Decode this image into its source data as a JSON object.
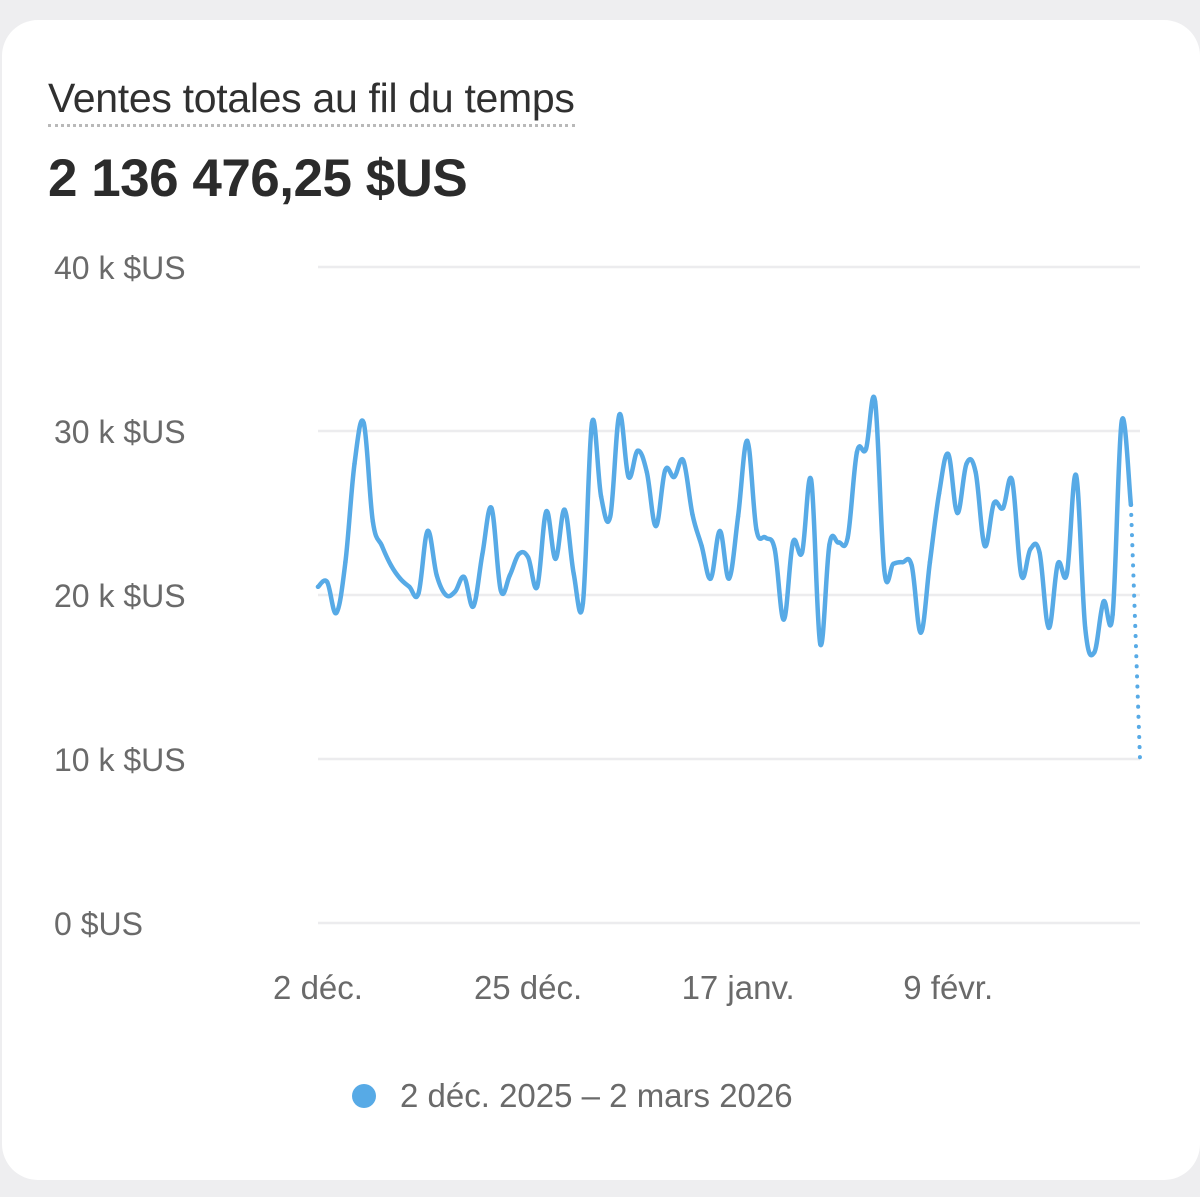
{
  "card": {
    "title": "Ventes totales au fil du temps",
    "total": "2 136 476,25 $US"
  },
  "legend": {
    "label": "2 déc. 2025 – 2 mars 2026"
  },
  "colors": {
    "series": "#57aae6",
    "grid": "#ececee",
    "axis_text": "#6a6a6a",
    "title_text": "#303030"
  },
  "chart_data": {
    "type": "line",
    "title": "Ventes totales au fil du temps",
    "xlabel": "",
    "ylabel": "",
    "ylim": [
      0,
      40000
    ],
    "grid": true,
    "legend_position": "bottom",
    "y_ticks": [
      {
        "value": 0,
        "label": "0 $US"
      },
      {
        "value": 10000,
        "label": "10 k $US"
      },
      {
        "value": 20000,
        "label": "20 k $US"
      },
      {
        "value": 30000,
        "label": "30 k $US"
      },
      {
        "value": 40000,
        "label": "40 k $US"
      }
    ],
    "x_ticks": [
      {
        "date": "2025-12-02",
        "label": "2 déc."
      },
      {
        "date": "2025-12-25",
        "label": "25 déc."
      },
      {
        "date": "2026-01-17",
        "label": "17 janv."
      },
      {
        "date": "2026-02-09",
        "label": "9 févr."
      }
    ],
    "series": [
      {
        "name": "2 déc. 2025 – 2 mars 2026",
        "color": "#57aae6",
        "x": [
          "2025-12-02",
          "2025-12-03",
          "2025-12-04",
          "2025-12-05",
          "2025-12-06",
          "2025-12-07",
          "2025-12-08",
          "2025-12-09",
          "2025-12-10",
          "2025-12-11",
          "2025-12-12",
          "2025-12-13",
          "2025-12-14",
          "2025-12-15",
          "2025-12-16",
          "2025-12-17",
          "2025-12-18",
          "2025-12-19",
          "2025-12-20",
          "2025-12-21",
          "2025-12-22",
          "2025-12-23",
          "2025-12-24",
          "2025-12-25",
          "2025-12-26",
          "2025-12-27",
          "2025-12-28",
          "2025-12-29",
          "2025-12-30",
          "2025-12-31",
          "2026-01-01",
          "2026-01-02",
          "2026-01-03",
          "2026-01-04",
          "2026-01-05",
          "2026-01-06",
          "2026-01-07",
          "2026-01-08",
          "2026-01-09",
          "2026-01-10",
          "2026-01-11",
          "2026-01-12",
          "2026-01-13",
          "2026-01-14",
          "2026-01-15",
          "2026-01-16",
          "2026-01-17",
          "2026-01-18",
          "2026-01-19",
          "2026-01-20",
          "2026-01-21",
          "2026-01-22",
          "2026-01-23",
          "2026-01-24",
          "2026-01-25",
          "2026-01-26",
          "2026-01-27",
          "2026-01-28",
          "2026-01-29",
          "2026-01-30",
          "2026-01-31",
          "2026-02-01",
          "2026-02-02",
          "2026-02-03",
          "2026-02-04",
          "2026-02-05",
          "2026-02-06",
          "2026-02-07",
          "2026-02-08",
          "2026-02-09",
          "2026-02-10",
          "2026-02-11",
          "2026-02-12",
          "2026-02-13",
          "2026-02-14",
          "2026-02-15",
          "2026-02-16",
          "2026-02-17",
          "2026-02-18",
          "2026-02-19",
          "2026-02-20",
          "2026-02-21",
          "2026-02-22",
          "2026-02-23",
          "2026-02-24",
          "2026-02-25",
          "2026-02-26",
          "2026-02-27",
          "2026-02-28",
          "2026-03-01"
        ],
        "values": [
          20500,
          20800,
          18900,
          22000,
          28000,
          30500,
          24500,
          23000,
          21800,
          21000,
          20500,
          20100,
          23900,
          21200,
          20000,
          20200,
          21100,
          19300,
          22500,
          25300,
          20300,
          21200,
          22500,
          22300,
          20500,
          25100,
          22200,
          25200,
          21300,
          19500,
          30500,
          26000,
          24800,
          31000,
          27200,
          28800,
          27500,
          24200,
          27600,
          27200,
          28200,
          24900,
          23000,
          21000,
          23900,
          21000,
          24800,
          29400,
          24000,
          23500,
          22800,
          18500,
          23200,
          22600,
          27000,
          17000,
          23100,
          23200,
          23500,
          28700,
          28900,
          31800,
          21500,
          21900,
          22000,
          21800,
          17700,
          22000,
          26200,
          28600,
          25000,
          28000,
          27500,
          23000,
          25600,
          25300,
          27000,
          21200,
          22800,
          22600,
          18000,
          21900,
          21300,
          27300,
          18000,
          16500,
          19600,
          18800,
          30600,
          25500
        ]
      },
      {
        "name": "",
        "style": "dotted",
        "color": "#57aae6",
        "x": [
          "2026-03-01",
          "2026-03-02"
        ],
        "values": [
          25500,
          10000
        ]
      }
    ]
  }
}
